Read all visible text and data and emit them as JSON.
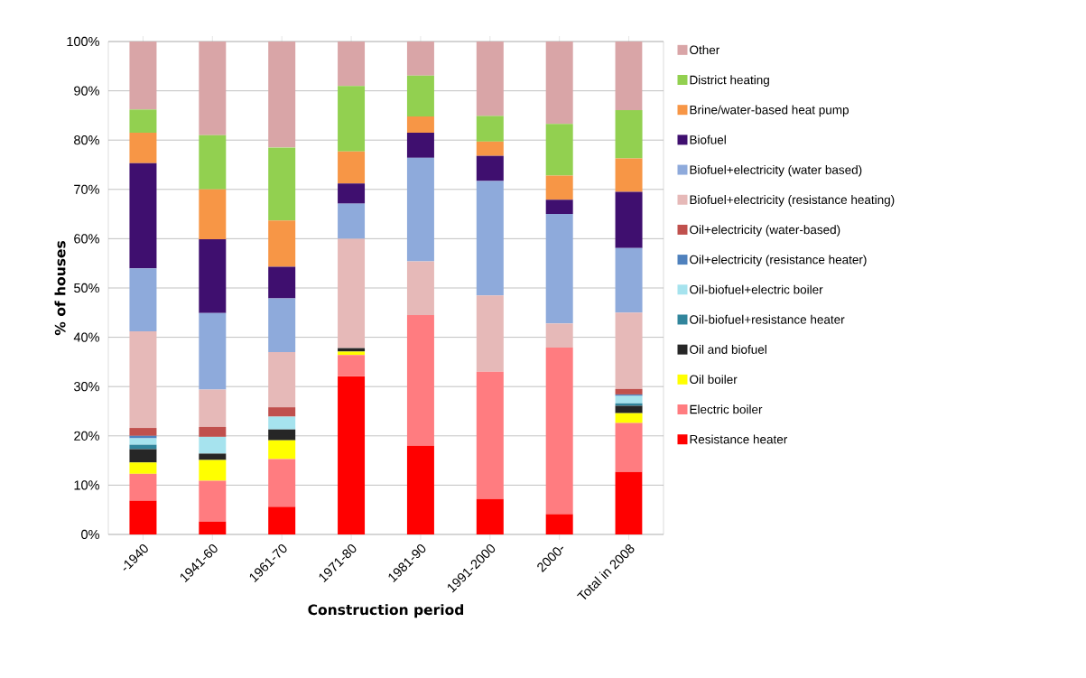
{
  "chart_data": {
    "type": "bar",
    "stacked": true,
    "xlabel": "Construction period",
    "ylabel": "% of houses",
    "categories": [
      "-1940",
      "1941-60",
      "1961-70",
      "1971-80",
      "1981-90",
      "1991-2000",
      "2000-",
      "Total in 2008"
    ],
    "ylim": [
      0,
      100
    ],
    "yticks": [
      {
        "value": 0,
        "label": "0%"
      },
      {
        "value": 10,
        "label": "10%"
      },
      {
        "value": 20,
        "label": "20%"
      },
      {
        "value": 30,
        "label": "30%"
      },
      {
        "value": 40,
        "label": "40%"
      },
      {
        "value": 50,
        "label": "50%"
      },
      {
        "value": 60,
        "label": "60%"
      },
      {
        "value": 70,
        "label": "70%"
      },
      {
        "value": 80,
        "label": "80%"
      },
      {
        "value": 90,
        "label": "90%"
      },
      {
        "value": 100,
        "label": "100%"
      }
    ],
    "grid": "y",
    "legend": "right",
    "series": [
      {
        "name": "Resistance heater",
        "color": "#ff0000",
        "values": [
          6.8,
          2.6,
          5.6,
          32.1,
          18.0,
          7.2,
          4.1,
          12.7
        ]
      },
      {
        "name": "Electric boiler",
        "color": "#ff7c80",
        "values": [
          5.5,
          8.3,
          9.7,
          4.3,
          26.5,
          25.8,
          33.8,
          9.9
        ]
      },
      {
        "name": "Oil boiler",
        "color": "#ffff00",
        "values": [
          2.3,
          4.2,
          3.8,
          0.7,
          0,
          0,
          0,
          2.0
        ]
      },
      {
        "name": "Oil and biofuel",
        "color": "#262626",
        "values": [
          2.7,
          1.3,
          2.2,
          0.7,
          0,
          0,
          0,
          1.5
        ]
      },
      {
        "name": "Oil-biofuel+resistance heater",
        "color": "#31859c",
        "values": [
          0.9,
          0,
          0,
          0,
          0,
          0,
          0,
          0.5
        ]
      },
      {
        "name": "Oil-biofuel+electric boiler",
        "color": "#a6e3ee",
        "values": [
          1.3,
          3.4,
          2.6,
          0,
          0,
          0,
          0,
          1.5
        ]
      },
      {
        "name": "Oil+electricity (resistance heater)",
        "color": "#4f81bd",
        "values": [
          0.5,
          0,
          0,
          0,
          0,
          0,
          0,
          0.3
        ]
      },
      {
        "name": "Oil+electricity (water-based)",
        "color": "#c0504d",
        "values": [
          1.6,
          2.0,
          1.9,
          0,
          0,
          0,
          0,
          1.1
        ]
      },
      {
        "name": "Biofuel+electricity (resistance heating)",
        "color": "#e6b9b8",
        "values": [
          19.6,
          7.6,
          11.2,
          22.2,
          10.9,
          15.5,
          4.9,
          15.5
        ]
      },
      {
        "name": "Biofuel+electricity (water based)",
        "color": "#8eaadb",
        "values": [
          12.8,
          15.5,
          10.9,
          7.1,
          21.0,
          23.2,
          22.2,
          13.1
        ]
      },
      {
        "name": "Biofuel",
        "color": "#3f0f6f",
        "values": [
          21.3,
          15.0,
          6.4,
          4.1,
          5.1,
          5.1,
          2.9,
          11.4
        ]
      },
      {
        "name": "Brine/water-based heat pump",
        "color": "#f79646",
        "values": [
          6.2,
          10.1,
          9.4,
          6.5,
          3.3,
          2.9,
          4.9,
          6.8
        ]
      },
      {
        "name": "District heating",
        "color": "#92d050",
        "values": [
          4.7,
          11.0,
          14.8,
          13.3,
          8.3,
          5.2,
          10.5,
          9.8
        ]
      },
      {
        "name": "Other",
        "color": "#d9a5a7",
        "values": [
          13.8,
          19.0,
          21.5,
          9.0,
          6.9,
          15.1,
          16.7,
          13.9
        ]
      }
    ]
  }
}
